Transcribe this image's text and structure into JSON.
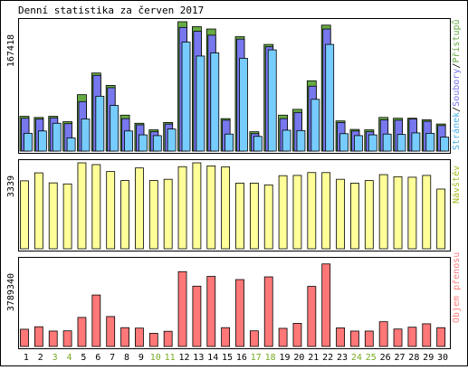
{
  "title": "Denní statistika za červen 2017",
  "colors": {
    "frame": "#000000",
    "grid": "#c8c8c8",
    "access": "#66aa44",
    "files": "#7777ee",
    "pages": "#77ccff",
    "visits": "#ffff99",
    "transfer": "#ff7777",
    "label_axis": "#000000",
    "weekend_label": "#77aa22",
    "legend_pages": "#4ab0e8",
    "legend_files": "#7777ee",
    "legend_access": "#66aa44",
    "legend_visits": "#a8b820",
    "legend_transfer": "#ff8080"
  },
  "panels": {
    "hits": {
      "max_label": "167418",
      "legend_pages": "Stránek",
      "legend_files": "Soubory",
      "legend_access": "Přístupů",
      "legend_sep": "/"
    },
    "visits": {
      "max_label": "3339",
      "legend": "Návštěv"
    },
    "transfer": {
      "max_label": "3789340",
      "legend": "Objem přenosu"
    }
  },
  "chart_data": {
    "type": "bar",
    "title": "Denní statistika za červen 2017",
    "categories": [
      "1",
      "2",
      "3",
      "4",
      "5",
      "6",
      "7",
      "8",
      "9",
      "10",
      "11",
      "12",
      "13",
      "14",
      "15",
      "16",
      "17",
      "18",
      "19",
      "20",
      "21",
      "22",
      "23",
      "24",
      "25",
      "26",
      "27",
      "28",
      "29",
      "30"
    ],
    "weekend_days": [
      "3",
      "4",
      "10",
      "11",
      "17",
      "18",
      "24",
      "25"
    ],
    "panels": [
      {
        "name": "hits",
        "ylim": [
          0,
          167418
        ],
        "series": [
          {
            "name": "Přístupů",
            "values": [
              45000,
              43500,
              45000,
              38000,
              73000,
              101000,
              85000,
              46500,
              36000,
              27500,
              37000,
              167418,
              161000,
              158000,
              42000,
              148000,
              25000,
              138000,
              46500,
              54000,
              91000,
              163000,
              39000,
              28000,
              27500,
              43500,
              42500,
              42500,
              40500,
              35000
            ]
          },
          {
            "name": "Soubory",
            "values": [
              42500,
              41500,
              43000,
              35500,
              64000,
              98000,
              82000,
              42000,
              34000,
              25000,
              35000,
              160000,
              155000,
              150000,
              40000,
              145000,
              22500,
              135000,
              42000,
              50000,
              84000,
              158000,
              37000,
              26000,
              25000,
              40500,
              40000,
              41500,
              38500,
              33000
            ]
          },
          {
            "name": "Stránek",
            "values": [
              23000,
              26000,
              36000,
              17000,
              41500,
              71000,
              59000,
              26000,
              21000,
              20000,
              28500,
              141000,
              123000,
              127000,
              22000,
              120000,
              19000,
              131000,
              27000,
              26500,
              67000,
              138000,
              22500,
              20000,
              21000,
              22000,
              21500,
              23500,
              23000,
              18000
            ]
          }
        ]
      },
      {
        "name": "visits",
        "ylim": [
          0,
          3339
        ],
        "series": [
          {
            "name": "Návštěv",
            "values": [
              2640,
              2950,
              2560,
              2520,
              3339,
              3270,
              3000,
              2650,
              3140,
              2650,
              2700,
              3190,
              3339,
              3220,
              3180,
              2550,
              2550,
              2480,
              2840,
              2850,
              2960,
              2960,
              2700,
              2550,
              2650,
              2880,
              2800,
              2780,
              2850,
              2320
            ]
          }
        ]
      },
      {
        "name": "transfer",
        "ylim": [
          0,
          3789340
        ],
        "series": [
          {
            "name": "Objem přenosu",
            "values": [
              760000,
              870000,
              680000,
              690000,
              1280000,
              2270000,
              1320000,
              830000,
              810000,
              580000,
              670000,
              3300000,
              2660000,
              3090000,
              830000,
              2950000,
              690000,
              3070000,
              800000,
              1020000,
              2650000,
              3640000,
              820000,
              680000,
              680000,
              1090000,
              770000,
              850000,
              1000000,
              830000
            ]
          }
        ]
      }
    ]
  }
}
